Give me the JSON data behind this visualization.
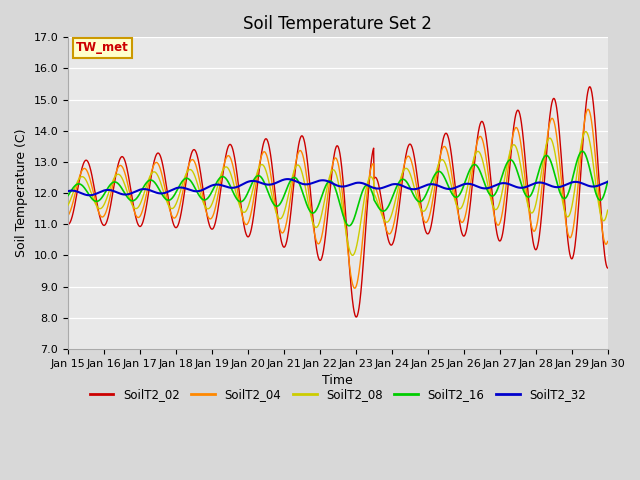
{
  "title": "Soil Temperature Set 2",
  "xlabel": "Time",
  "ylabel": "Soil Temperature (C)",
  "ylim": [
    7.0,
    17.0
  ],
  "yticks": [
    7.0,
    8.0,
    9.0,
    10.0,
    11.0,
    12.0,
    13.0,
    14.0,
    15.0,
    16.0,
    17.0
  ],
  "xtick_labels": [
    "Jan 15",
    "Jan 16",
    "Jan 17",
    "Jan 18",
    "Jan 19",
    "Jan 20",
    "Jan 21",
    "Jan 22",
    "Jan 23",
    "Jan 24",
    "Jan 25",
    "Jan 26",
    "Jan 27",
    "Jan 28",
    "Jan 29",
    "Jan 30"
  ],
  "series_colors": {
    "SoilT2_02": "#cc0000",
    "SoilT2_04": "#ff8800",
    "SoilT2_08": "#cccc00",
    "SoilT2_16": "#00cc00",
    "SoilT2_32": "#0000cc"
  },
  "fig_facecolor": "#d8d8d8",
  "plot_bg_color": "#e8e8e8",
  "legend_box_color": "#ffffcc",
  "legend_box_edge": "#cc9900",
  "tw_met_label": "TW_met",
  "n_days": 15,
  "points_per_day": 96,
  "title_fontsize": 12,
  "axis_label_fontsize": 9,
  "tick_fontsize": 8
}
